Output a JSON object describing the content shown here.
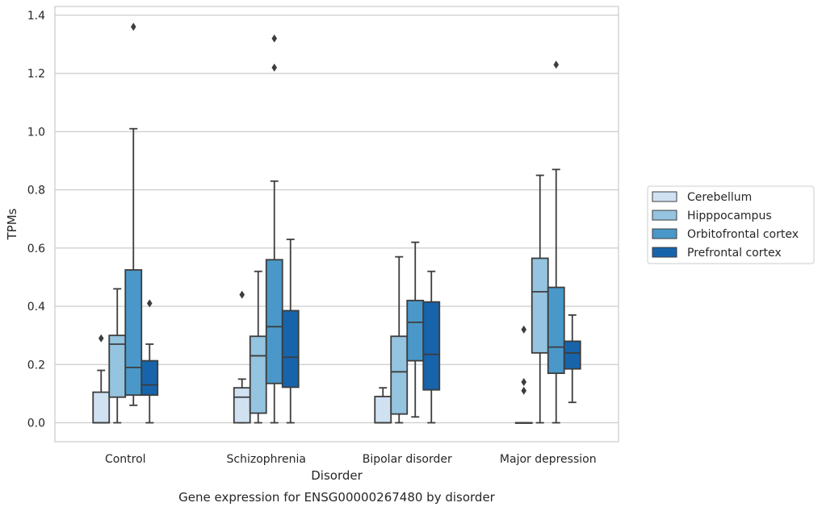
{
  "chart_data": {
    "type": "boxplot",
    "title": "",
    "caption": "Gene expression for ENSG00000267480 by disorder",
    "xlabel": "Disorder",
    "ylabel": "TPMs",
    "ylim": [
      -0.065,
      1.43
    ],
    "yticks": [
      "0.0",
      "0.2",
      "0.4",
      "0.6",
      "0.8",
      "1.0",
      "1.2",
      "1.4"
    ],
    "ytick_values": [
      0.0,
      0.2,
      0.4,
      0.6,
      0.8,
      1.0,
      1.2,
      1.4
    ],
    "grid": true,
    "legend_position": "right",
    "categories": [
      "Control",
      "Schizophrenia",
      "Bipolar disorder",
      "Major depression"
    ],
    "series": [
      {
        "name": "Cerebellum",
        "color": "#d0e1f2",
        "boxes": [
          {
            "whislo": 0.0,
            "q1": 0.0,
            "med": 0.0,
            "q3": 0.105,
            "whishi": 0.18,
            "fliers": [
              0.29
            ]
          },
          {
            "whislo": 0.0,
            "q1": 0.0,
            "med": 0.088,
            "q3": 0.12,
            "whishi": 0.15,
            "fliers": [
              0.44
            ]
          },
          {
            "whislo": 0.0,
            "q1": 0.0,
            "med": 0.0,
            "q3": 0.09,
            "whishi": 0.12,
            "fliers": []
          },
          {
            "whislo": 0.0,
            "q1": 0.0,
            "med": 0.0,
            "q3": 0.0,
            "whishi": 0.0,
            "fliers": [
              0.32,
              0.14,
              0.11
            ]
          }
        ]
      },
      {
        "name": "Hipppocampus",
        "color": "#94c4df",
        "boxes": [
          {
            "whislo": 0.0,
            "q1": 0.088,
            "med": 0.27,
            "q3": 0.3,
            "whishi": 0.46,
            "fliers": []
          },
          {
            "whislo": 0.0,
            "q1": 0.033,
            "med": 0.23,
            "q3": 0.297,
            "whishi": 0.52,
            "fliers": []
          },
          {
            "whislo": 0.0,
            "q1": 0.03,
            "med": 0.175,
            "q3": 0.297,
            "whishi": 0.57,
            "fliers": []
          },
          {
            "whislo": 0.0,
            "q1": 0.24,
            "med": 0.45,
            "q3": 0.565,
            "whishi": 0.85,
            "fliers": []
          }
        ]
      },
      {
        "name": "Orbitofrontal cortex",
        "color": "#4a98c9",
        "boxes": [
          {
            "whislo": 0.06,
            "q1": 0.095,
            "med": 0.19,
            "q3": 0.525,
            "whishi": 1.01,
            "fliers": [
              1.36
            ]
          },
          {
            "whislo": 0.0,
            "q1": 0.135,
            "med": 0.33,
            "q3": 0.56,
            "whishi": 0.83,
            "fliers": [
              1.32,
              1.22
            ]
          },
          {
            "whislo": 0.02,
            "q1": 0.213,
            "med": 0.345,
            "q3": 0.42,
            "whishi": 0.62,
            "fliers": []
          },
          {
            "whislo": 0.0,
            "q1": 0.17,
            "med": 0.26,
            "q3": 0.465,
            "whishi": 0.87,
            "fliers": [
              1.23
            ]
          }
        ]
      },
      {
        "name": "Prefrontal cortex",
        "color": "#1764ab",
        "boxes": [
          {
            "whislo": 0.0,
            "q1": 0.095,
            "med": 0.13,
            "q3": 0.213,
            "whishi": 0.27,
            "fliers": [
              0.41
            ]
          },
          {
            "whislo": 0.0,
            "q1": 0.122,
            "med": 0.225,
            "q3": 0.385,
            "whishi": 0.63,
            "fliers": []
          },
          {
            "whislo": 0.0,
            "q1": 0.113,
            "med": 0.235,
            "q3": 0.415,
            "whishi": 0.52,
            "fliers": []
          },
          {
            "whislo": 0.07,
            "q1": 0.185,
            "med": 0.24,
            "q3": 0.28,
            "whishi": 0.37,
            "fliers": []
          }
        ]
      }
    ]
  }
}
